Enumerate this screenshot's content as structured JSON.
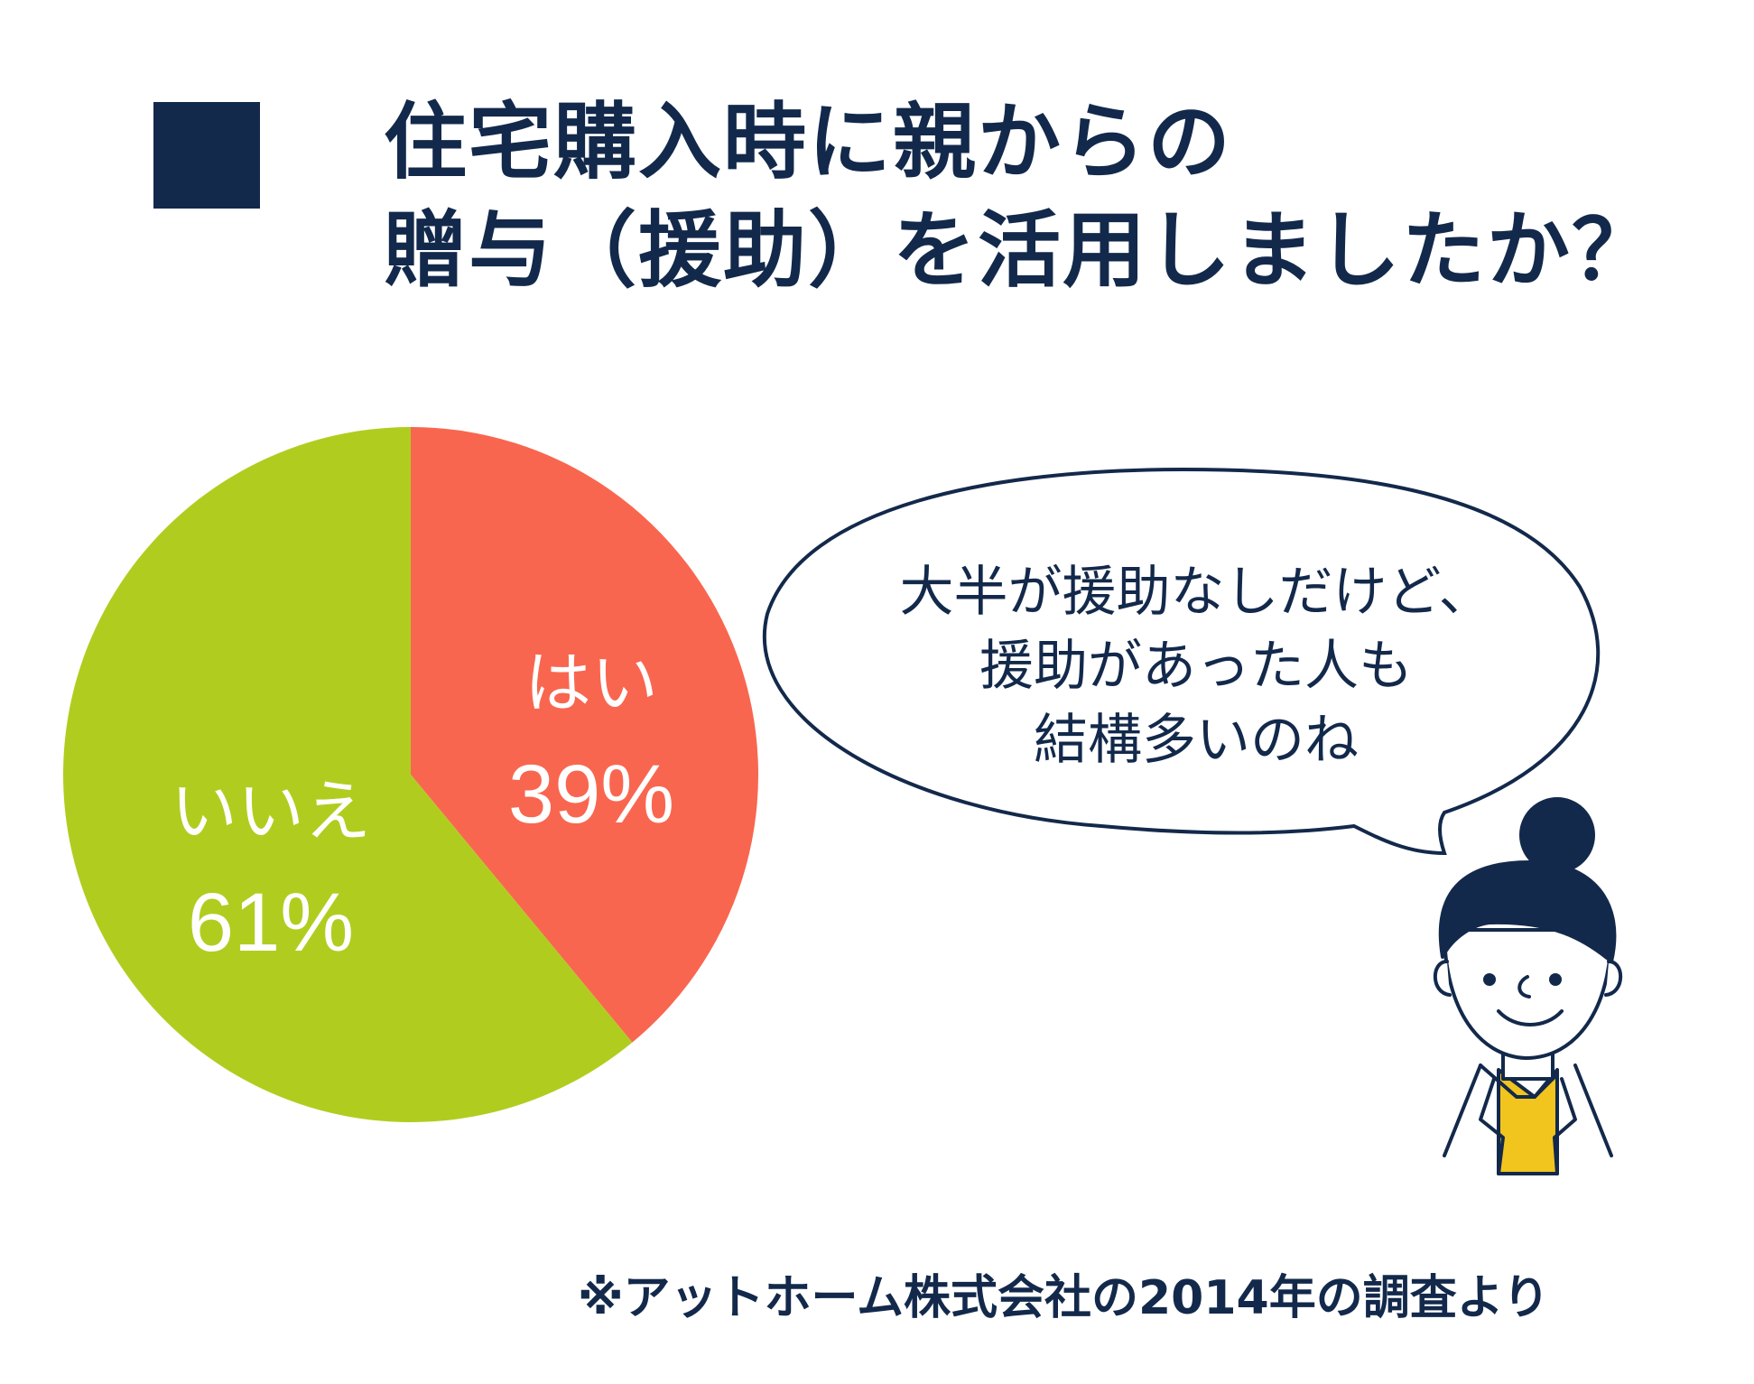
{
  "title_lines": [
    "住宅購入時に親からの",
    "贈与（援助）を活用しましたか？"
  ],
  "chart_data": {
    "type": "pie",
    "slices": [
      {
        "label": "はい",
        "value": 39,
        "value_label": "39%",
        "color": "#f9664f"
      },
      {
        "label": "いいえ",
        "value": 61,
        "value_label": "61%",
        "color": "#b0cd1f"
      }
    ],
    "start": "12 o'clock",
    "direction": "clockwise"
  },
  "speech_bubble": {
    "lines": [
      "大半が援助なしだけど、",
      "援助があった人も",
      "結構多いのね"
    ]
  },
  "footnote": "※アットホーム株式会社の2014年の調査より",
  "colors": {
    "navy": "#13294b",
    "skin": "#ffffff",
    "shirt": "#f2c41e"
  }
}
